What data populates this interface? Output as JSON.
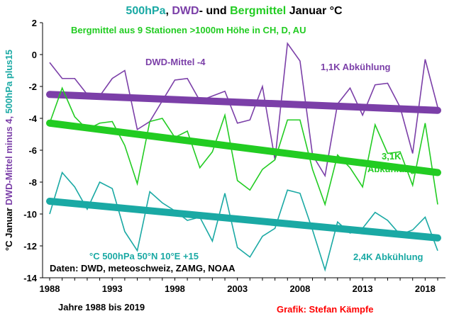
{
  "chart_data": {
    "type": "line",
    "title_parts": [
      {
        "text": "500hPa",
        "color": "#1aa9a4"
      },
      {
        "text": ", ",
        "color": "#000000"
      },
      {
        "text": "DWD",
        "color": "#7b3fa8"
      },
      {
        "text": "- und ",
        "color": "#000000"
      },
      {
        "text": "Bergmittel",
        "color": "#22cc22"
      },
      {
        "text": " Januar °C",
        "color": "#000000"
      }
    ],
    "ylabel_parts": [
      {
        "text": "°C Januar ",
        "color": "#000000"
      },
      {
        "text": "DWD-Mittel minus 4, ",
        "color": "#7b3fa8"
      },
      {
        "text": "500hPa plus15",
        "color": "#1aa9a4"
      }
    ],
    "xlabel": "Jahre 1988 bis 2019",
    "credit": "Grafik: Stefan Kämpfe",
    "credit_color": "#ff0000",
    "ylim": [
      -14,
      2
    ],
    "yticks": [
      2,
      0,
      -2,
      -4,
      -6,
      -8,
      -10,
      -12,
      -14
    ],
    "xlim": [
      1988,
      2019
    ],
    "xticks": [
      1988,
      1993,
      1998,
      2003,
      2008,
      2013,
      2018
    ],
    "grid": false,
    "x": [
      1988,
      1989,
      1990,
      1991,
      1992,
      1993,
      1994,
      1995,
      1996,
      1997,
      1998,
      1999,
      2000,
      2001,
      2002,
      2003,
      2004,
      2005,
      2006,
      2007,
      2008,
      2009,
      2010,
      2011,
      2012,
      2013,
      2014,
      2015,
      2016,
      2017,
      2018,
      2019
    ],
    "series": [
      {
        "name": "DWD-Mittel -4",
        "color": "#7b3fa8",
        "values": [
          -0.5,
          -1.5,
          -1.5,
          -2.5,
          -2.6,
          -1.5,
          -1.0,
          -4.7,
          -4.2,
          -2.9,
          -1.6,
          -1.5,
          -2.9,
          -2.6,
          -2.3,
          -4.3,
          -4.1,
          -2.0,
          -6.6,
          0.7,
          -0.4,
          -6.3,
          -7.6,
          -3.1,
          -2.1,
          -3.8,
          -1.9,
          -1.8,
          -3.3,
          -6.2,
          -0.3,
          -3.3
        ],
        "trend": [
          -2.5,
          -3.5
        ]
      },
      {
        "name": "Bergmittel",
        "color": "#22cc22",
        "values": [
          -4.3,
          -2.1,
          -3.9,
          -4.7,
          -4.3,
          -4.2,
          -5.7,
          -8.1,
          -4.2,
          -4.0,
          -5.2,
          -4.8,
          -7.1,
          -6.1,
          -3.8,
          -7.9,
          -8.5,
          -7.2,
          -6.6,
          -4.1,
          -4.1,
          -7.2,
          -9.4,
          -6.3,
          -7.1,
          -8.3,
          -4.4,
          -6.2,
          -6.1,
          -8.2,
          -4.3,
          -9.4
        ],
        "trend": [
          -4.3,
          -7.4
        ]
      },
      {
        "name": "500hPa +15",
        "color": "#1aa9a4",
        "values": [
          -10.0,
          -7.4,
          -8.3,
          -9.7,
          -8.0,
          -8.4,
          -11.1,
          -12.3,
          -8.6,
          -9.3,
          -9.8,
          -10.4,
          -10.2,
          -11.7,
          -8.7,
          -12.1,
          -12.7,
          -11.4,
          -10.9,
          -8.5,
          -8.7,
          -11.0,
          -13.5,
          -10.5,
          -11.2,
          -10.9,
          -9.9,
          -10.4,
          -11.3,
          -11.0,
          -10.2,
          -12.3
        ],
        "trend": [
          -9.2,
          -11.5
        ]
      }
    ],
    "annotations": [
      {
        "text": "Bergmittel aus 9 Stationen >1000m Höhe in CH, D, AU",
        "color": "#22cc22"
      },
      {
        "text": "DWD-Mittel -4",
        "color": "#7b3fa8"
      },
      {
        "text": "1,1K Abkühlung",
        "color": "#7b3fa8"
      },
      {
        "text": "3,1K",
        "color": "#22cc22"
      },
      {
        "text": "Abkühlung",
        "color": "#22cc22"
      },
      {
        "text": "°C 500hPa 50°N 10°E +15",
        "color": "#1aa9a4"
      },
      {
        "text": "2,4K Abkühlung",
        "color": "#1aa9a4"
      },
      {
        "text": "Daten: DWD, meteoschweiz, ZAMG, NOAA",
        "color": "#000000"
      }
    ]
  }
}
